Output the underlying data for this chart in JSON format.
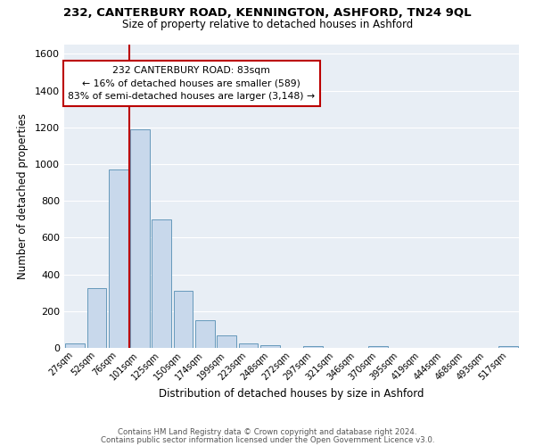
{
  "title": "232, CANTERBURY ROAD, KENNINGTON, ASHFORD, TN24 9QL",
  "subtitle": "Size of property relative to detached houses in Ashford",
  "xlabel": "Distribution of detached houses by size in Ashford",
  "ylabel": "Number of detached properties",
  "bar_color": "#c8d8eb",
  "bar_edge_color": "#6699bb",
  "fig_background_color": "#ffffff",
  "axes_background_color": "#e8eef5",
  "grid_color": "#ffffff",
  "categories": [
    "27sqm",
    "52sqm",
    "76sqm",
    "101sqm",
    "125sqm",
    "150sqm",
    "174sqm",
    "199sqm",
    "223sqm",
    "248sqm",
    "272sqm",
    "297sqm",
    "321sqm",
    "346sqm",
    "370sqm",
    "395sqm",
    "419sqm",
    "444sqm",
    "468sqm",
    "493sqm",
    "517sqm"
  ],
  "values": [
    25,
    325,
    970,
    1190,
    700,
    310,
    150,
    70,
    25,
    15,
    0,
    10,
    0,
    0,
    10,
    0,
    0,
    0,
    0,
    0,
    10
  ],
  "ylim": [
    0,
    1650
  ],
  "yticks": [
    0,
    200,
    400,
    600,
    800,
    1000,
    1200,
    1400,
    1600
  ],
  "vline_x": 2.5,
  "annotation_title": "232 CANTERBURY ROAD: 83sqm",
  "annotation_line1": "← 16% of detached houses are smaller (589)",
  "annotation_line2": "83% of semi-detached houses are larger (3,148) →",
  "annotation_box_color": "#ffffff",
  "annotation_box_edge_color": "#bb0000",
  "red_line_color": "#bb0000",
  "footer_line1": "Contains HM Land Registry data © Crown copyright and database right 2024.",
  "footer_line2": "Contains public sector information licensed under the Open Government Licence v3.0."
}
